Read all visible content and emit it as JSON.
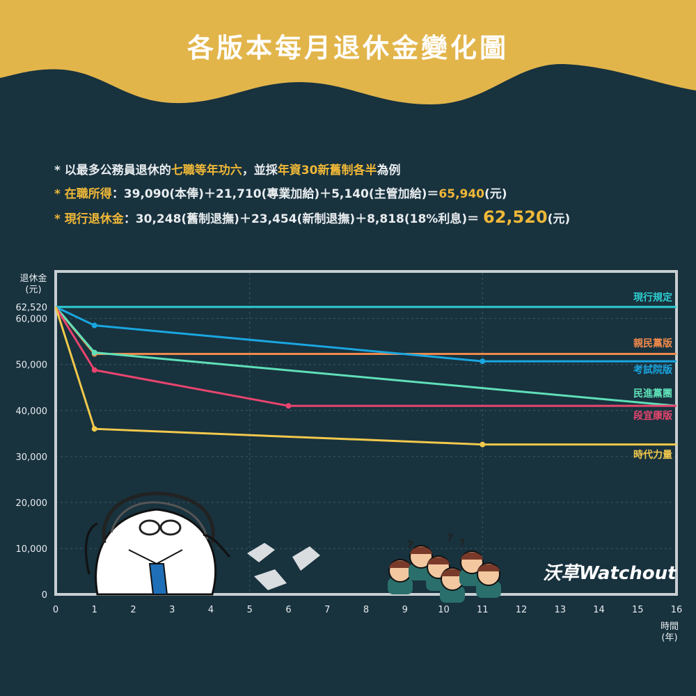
{
  "header": {
    "title": "各版本每月退休金變化圖",
    "banner_color": "#e2b54b"
  },
  "notes": {
    "line1": {
      "prefix": "* 以最多公務員退休的",
      "hl1": "七職等年功六",
      "mid": "，並採",
      "hl2": "年資30新舊制各半",
      "suffix": "為例"
    },
    "line2": {
      "label": "* 在職所得",
      "body": "：39,090(本俸)＋21,710(專業加給)＋5,140(主管加給)＝",
      "total": "65,940",
      "unit": "(元)"
    },
    "line3": {
      "label": "* 現行退休金",
      "body": "：30,248(舊制退撫)＋23,454(新制退撫)＋8,818(18%利息)＝ ",
      "total": "62,520",
      "unit": "(元)"
    }
  },
  "chart_data": {
    "type": "line",
    "ylabel": "退休金\n(元)",
    "xlabel": "時間\n(年)",
    "xlim": [
      0,
      16
    ],
    "ylim": [
      0,
      70000
    ],
    "x_ticks": [
      0,
      1,
      2,
      3,
      4,
      5,
      6,
      7,
      8,
      9,
      10,
      11,
      12,
      13,
      14,
      15,
      16
    ],
    "y_ticks": [
      {
        "value": 0,
        "label": "0"
      },
      {
        "value": 10000,
        "label": "10,000"
      },
      {
        "value": 20000,
        "label": "20,000"
      },
      {
        "value": 30000,
        "label": "30,000"
      },
      {
        "value": 40000,
        "label": "40,000"
      },
      {
        "value": 50000,
        "label": "50,000"
      },
      {
        "value": 60000,
        "label": "60,000"
      },
      {
        "value": 62520,
        "label": "62,520"
      }
    ],
    "grid": true,
    "series": [
      {
        "name": "現行規定",
        "color": "#2ecfd1",
        "x": [
          0,
          16
        ],
        "y": [
          62520,
          62520
        ],
        "markers": []
      },
      {
        "name": "親民黨版",
        "color": "#f08a4b",
        "x": [
          0,
          1,
          16
        ],
        "y": [
          62520,
          52300,
          52300
        ],
        "markers": [
          1
        ]
      },
      {
        "name": "考試院版",
        "color": "#1aa6e0",
        "x": [
          0,
          1,
          11,
          16
        ],
        "y": [
          62520,
          58500,
          50700,
          50700
        ],
        "markers": [
          1,
          2
        ]
      },
      {
        "name": "民進黨團",
        "color": "#5fe0b8",
        "x": [
          0,
          1,
          16
        ],
        "y": [
          62520,
          52600,
          41000
        ],
        "markers": [
          1
        ]
      },
      {
        "name": "段宜康版",
        "color": "#e8456e",
        "x": [
          0,
          1,
          6,
          16
        ],
        "y": [
          62520,
          48800,
          41000,
          41000
        ],
        "markers": [
          1,
          2
        ]
      },
      {
        "name": "時代力量",
        "color": "#f2c94c",
        "x": [
          0,
          1,
          11,
          16
        ],
        "y": [
          62520,
          36000,
          32600,
          32600
        ],
        "markers": [
          1,
          2
        ]
      }
    ]
  },
  "branding": {
    "logo": "沃草Watchout"
  }
}
